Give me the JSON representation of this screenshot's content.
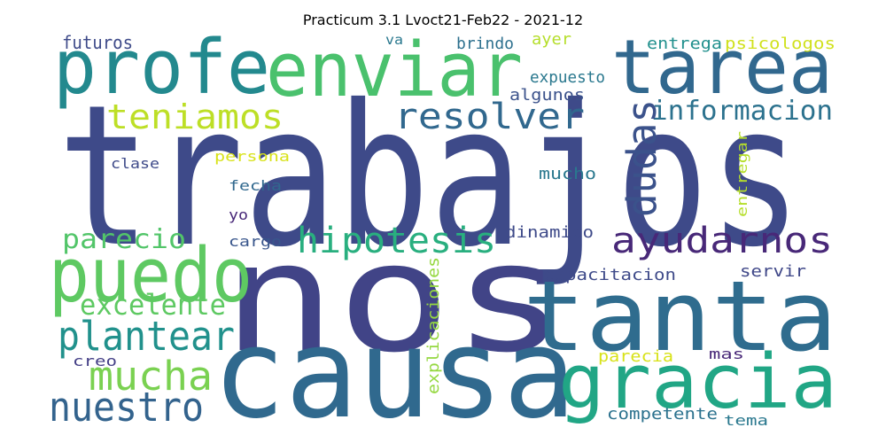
{
  "title": "Practicum 3.1 Lvoct21-Feb22 - 2021-12",
  "words": [
    "trabajos",
    "nos",
    "causa",
    "tanta",
    "gracia",
    "profe",
    "enviar",
    "tarea",
    "puedo",
    "resolver",
    "teniamos",
    "informacion",
    "dudas",
    "hipotesis",
    "ayudarnos",
    "parecio",
    "plantear",
    "excelente",
    "mucha",
    "nuestro",
    "futuros",
    "va",
    "brindo",
    "ayer",
    "entrega",
    "psicologos",
    "expuesto",
    "algunos",
    "clase",
    "persona",
    "fecha",
    "mucho",
    "entregar",
    "yo",
    "cargo",
    "dinamico",
    "explicaciones",
    "capacitacion",
    "servir",
    "creo",
    "parecia",
    "mas",
    "competente",
    "tema"
  ]
}
